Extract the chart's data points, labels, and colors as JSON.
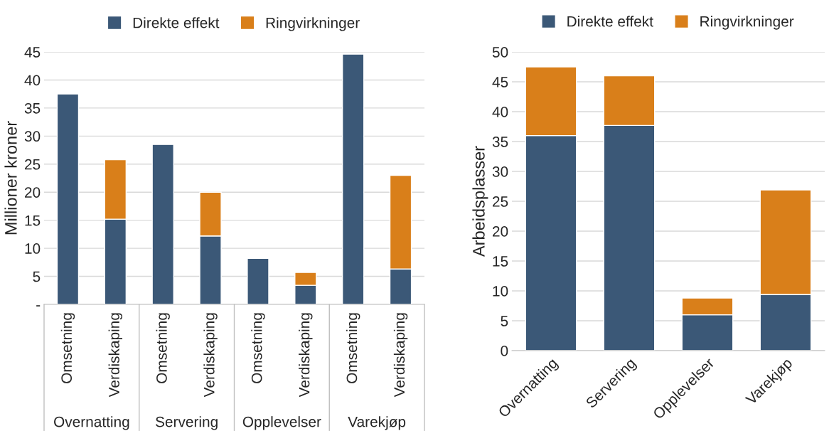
{
  "chart_data": [
    {
      "type": "bar",
      "stacked": true,
      "ylabel": "Millioner kroner",
      "categories": [
        "Omsetning",
        "Verdiskaping",
        "Omsetning",
        "Verdiskaping",
        "Omsetning",
        "Verdiskaping",
        "Omsetning",
        "Verdiskaping"
      ],
      "series": [
        {
          "name": "Direkte effekt",
          "color": "#3b5877",
          "values": [
            37.5,
            15.2,
            28.5,
            12.2,
            8.2,
            3.4,
            44.6,
            6.3
          ]
        },
        {
          "name": "Ringvirkninger",
          "color": "#d97f1a",
          "values": [
            null,
            10.6,
            null,
            7.8,
            null,
            2.3,
            null,
            16.7
          ]
        }
      ],
      "annotations": [
        "Overnatting",
        "Servering",
        "Opplevelser",
        "Varekjøp"
      ],
      "ylim": [
        0,
        45
      ],
      "yticks": [
        {
          "value": 0,
          "label": "-"
        },
        5,
        10,
        15,
        20,
        25,
        30,
        35,
        40,
        45
      ],
      "grid": "y",
      "legend": "top"
    },
    {
      "type": "bar",
      "stacked": true,
      "ylabel": "Arbeidsplasser",
      "categories": [
        "Overnatting",
        "Servering",
        "Opplevelser",
        "Varekjøp"
      ],
      "series": [
        {
          "name": "Direkte effekt",
          "color": "#3b5877",
          "values": [
            36.0,
            37.7,
            6.0,
            9.4
          ]
        },
        {
          "name": "Ringvirkninger",
          "color": "#d97f1a",
          "values": [
            11.5,
            8.3,
            2.8,
            17.5
          ]
        }
      ],
      "ylim": [
        0,
        50
      ],
      "yticks": [
        0,
        5,
        10,
        15,
        20,
        25,
        30,
        35,
        40,
        45,
        50
      ],
      "grid": "y",
      "legend": "top"
    }
  ]
}
